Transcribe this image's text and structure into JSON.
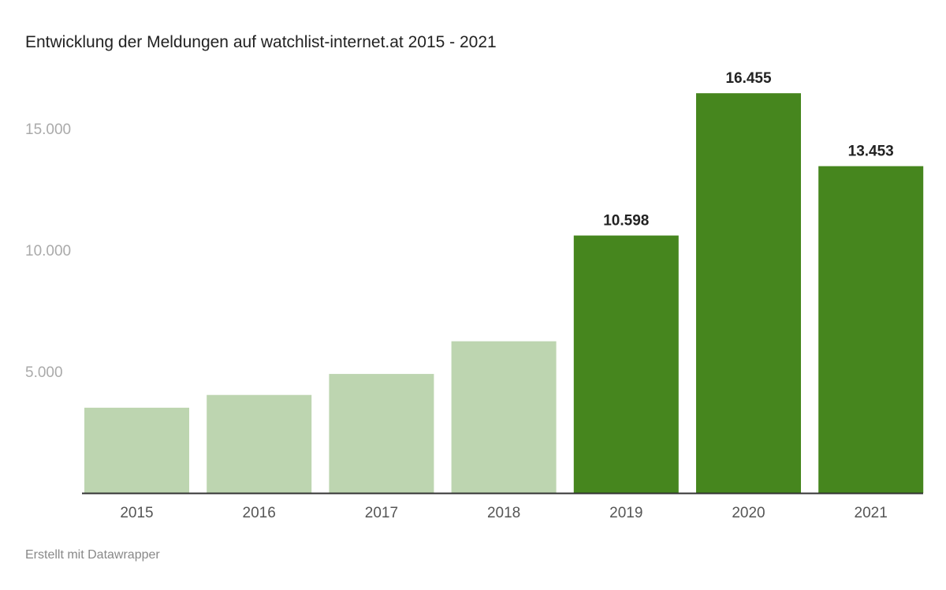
{
  "chart_data": {
    "type": "bar",
    "title": "Entwicklung der Meldungen auf watchlist-internet.at 2015 - 2021",
    "categories": [
      "2015",
      "2016",
      "2017",
      "2018",
      "2019",
      "2020",
      "2021"
    ],
    "values": [
      3510,
      4035,
      4900,
      6245,
      10598,
      16455,
      13453
    ],
    "data_labels": [
      "",
      "",
      "",
      "",
      "10.598",
      "16.455",
      "13.453"
    ],
    "colors": [
      "#bdd5b0",
      "#bdd5b0",
      "#bdd5b0",
      "#bdd5b0",
      "#46861e",
      "#46861e",
      "#46861e"
    ],
    "yticks": [
      5000,
      10000,
      15000
    ],
    "ytick_labels": [
      "5.000",
      "10.000",
      "15.000"
    ],
    "ylim": [
      0,
      16455
    ],
    "grid": false,
    "xlabel": "",
    "ylabel": ""
  },
  "footer": "Erstellt mit Datawrapper"
}
